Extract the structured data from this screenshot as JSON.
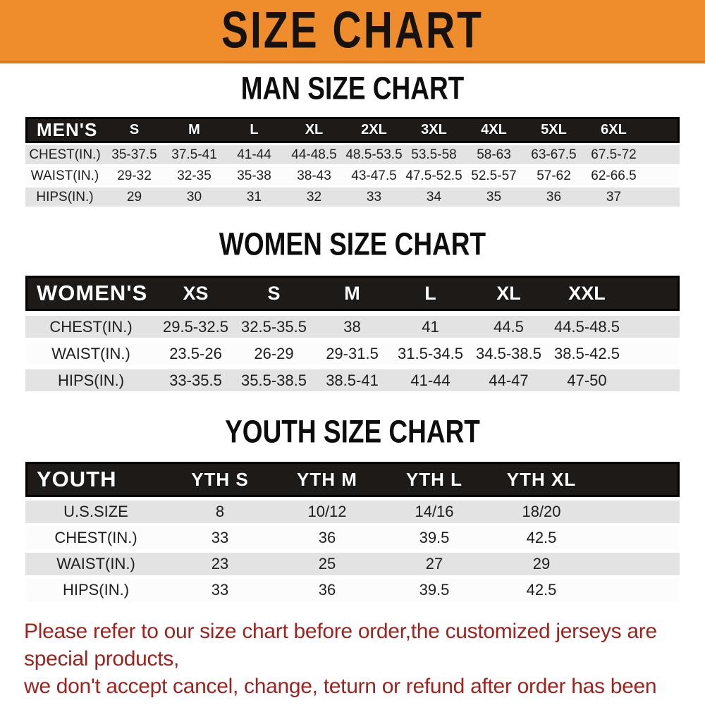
{
  "banner": {
    "title": "SIZE CHART"
  },
  "chart_data": [
    {
      "type": "table",
      "title": "MAN SIZE CHART",
      "corner_label": "MEN'S",
      "columns": [
        "S",
        "M",
        "L",
        "XL",
        "2XL",
        "3XL",
        "4XL",
        "5XL",
        "6XL"
      ],
      "rows": [
        {
          "label": "CHEST(IN.)",
          "values": [
            "35-37.5",
            "37.5-41",
            "41-44",
            "44-48.5",
            "48.5-53.5",
            "53.5-58",
            "58-63",
            "63-67.5",
            "67.5-72"
          ]
        },
        {
          "label": "WAIST(IN.)",
          "values": [
            "29-32",
            "32-35",
            "35-38",
            "38-43",
            "43-47.5",
            "47.5-52.5",
            "52.5-57",
            "57-62",
            "62-66.5"
          ]
        },
        {
          "label": "HIPS(IN.)",
          "values": [
            "29",
            "30",
            "31",
            "32",
            "33",
            "34",
            "35",
            "36",
            "37"
          ]
        }
      ]
    },
    {
      "type": "table",
      "title": "WOMEN SIZE CHART",
      "corner_label": "WOMEN'S",
      "columns": [
        "XS",
        "S",
        "M",
        "L",
        "XL",
        "XXL"
      ],
      "rows": [
        {
          "label": "CHEST(IN.)",
          "values": [
            "29.5-32.5",
            "32.5-35.5",
            "38",
            "41",
            "44.5",
            "44.5-48.5"
          ]
        },
        {
          "label": "WAIST(IN.)",
          "values": [
            "23.5-26",
            "26-29",
            "29-31.5",
            "31.5-34.5",
            "34.5-38.5",
            "38.5-42.5"
          ]
        },
        {
          "label": "HIPS(IN.)",
          "values": [
            "33-35.5",
            "35.5-38.5",
            "38.5-41",
            "41-44",
            "44-47",
            "47-50"
          ]
        }
      ]
    },
    {
      "type": "table",
      "title": "YOUTH SIZE CHART",
      "corner_label": "YOUTH",
      "columns": [
        "YTH S",
        "YTH M",
        "YTH L",
        "YTH XL"
      ],
      "rows": [
        {
          "label": "U.S.SIZE",
          "values": [
            "8",
            "10/12",
            "14/16",
            "18/20"
          ]
        },
        {
          "label": "CHEST(IN.)",
          "values": [
            "33",
            "36",
            "39.5",
            "42.5"
          ]
        },
        {
          "label": "WAIST(IN.)",
          "values": [
            "23",
            "25",
            "27",
            "29"
          ]
        },
        {
          "label": "HIPS(IN.)",
          "values": [
            "33",
            "36",
            "39.5",
            "42.5"
          ]
        }
      ]
    }
  ],
  "footer": {
    "line1": "Please refer to our size chart before order,the customized jerseys are special products,",
    "line2": "we don't accept cancel, change, teturn or refund after order has been placed!"
  },
  "colors": {
    "banner_orange": "#ef8c2c",
    "header_bar_bg": "#1d1a18",
    "header_bar_text": "#ffffff",
    "row_stripe": "#e3e3e3",
    "note_red": "#9c241e"
  }
}
